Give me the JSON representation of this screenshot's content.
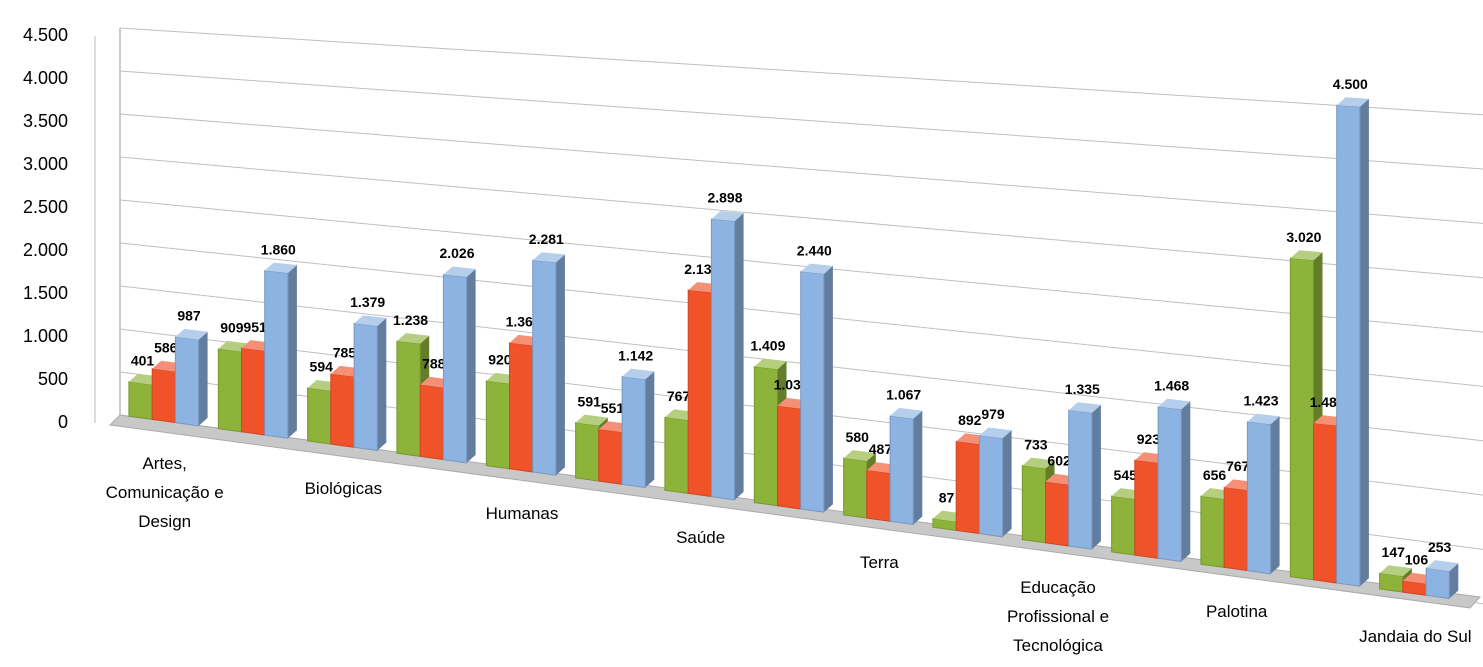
{
  "chart_data": {
    "type": "bar3d",
    "categories": [
      "Artes, Comunicação e Design",
      null,
      "Biológicas",
      null,
      "Humanas",
      null,
      "Saúde",
      null,
      "Terra",
      null,
      "Educação Profissional e Tecnológica",
      null,
      "Palotina",
      null,
      "Jandaia do Sul"
    ],
    "series": [
      {
        "color": "#8db33a",
        "values": [
          401,
          909,
          594,
          1238,
          920,
          591,
          767,
          1409,
          580,
          87,
          733,
          545,
          656,
          3020,
          147
        ],
        "value_labels": [
          "401",
          "909",
          "594",
          "1.238",
          "920",
          "591",
          "767",
          "1.409",
          "580",
          "87",
          "733",
          "545",
          "656",
          "3.020",
          "147"
        ]
      },
      {
        "color": "#f0532a",
        "values": [
          586,
          951,
          785,
          788,
          1361,
          551,
          2131,
          1031,
          487,
          892,
          602,
          923,
          767,
          1480,
          106
        ],
        "value_labels": [
          "586",
          "951",
          "785",
          "788",
          "1.361",
          "551",
          "2.131",
          "1.031",
          "487",
          "892",
          "602",
          "923",
          "767",
          "1.480",
          "106"
        ]
      },
      {
        "color": "#8db3e2",
        "values": [
          987,
          1860,
          1379,
          2026,
          2281,
          1142,
          2898,
          2440,
          1067,
          979,
          1335,
          1468,
          1423,
          4500,
          253
        ],
        "value_labels": [
          "987",
          "1.860",
          "1.379",
          "2.026",
          "2.281",
          "1.142",
          "2.898",
          "2.440",
          "1.067",
          "979",
          "1.335",
          "1.468",
          "1.423",
          "4.500",
          "253"
        ]
      }
    ],
    "ylim": [
      0,
      4500
    ],
    "yticks": [
      0,
      500,
      {
        "value": 1000,
        "label": "1.000"
      },
      {
        "value": 1500,
        "label": "1.500"
      },
      {
        "value": 2000,
        "label": "2.000"
      },
      {
        "value": 2500,
        "label": "2.500"
      },
      {
        "value": 3000,
        "label": "3.000"
      },
      {
        "value": 3500,
        "label": "3.500"
      },
      {
        "value": 4000,
        "label": "4.000"
      },
      {
        "value": 4500,
        "label": "4.500"
      }
    ],
    "grid": true
  }
}
